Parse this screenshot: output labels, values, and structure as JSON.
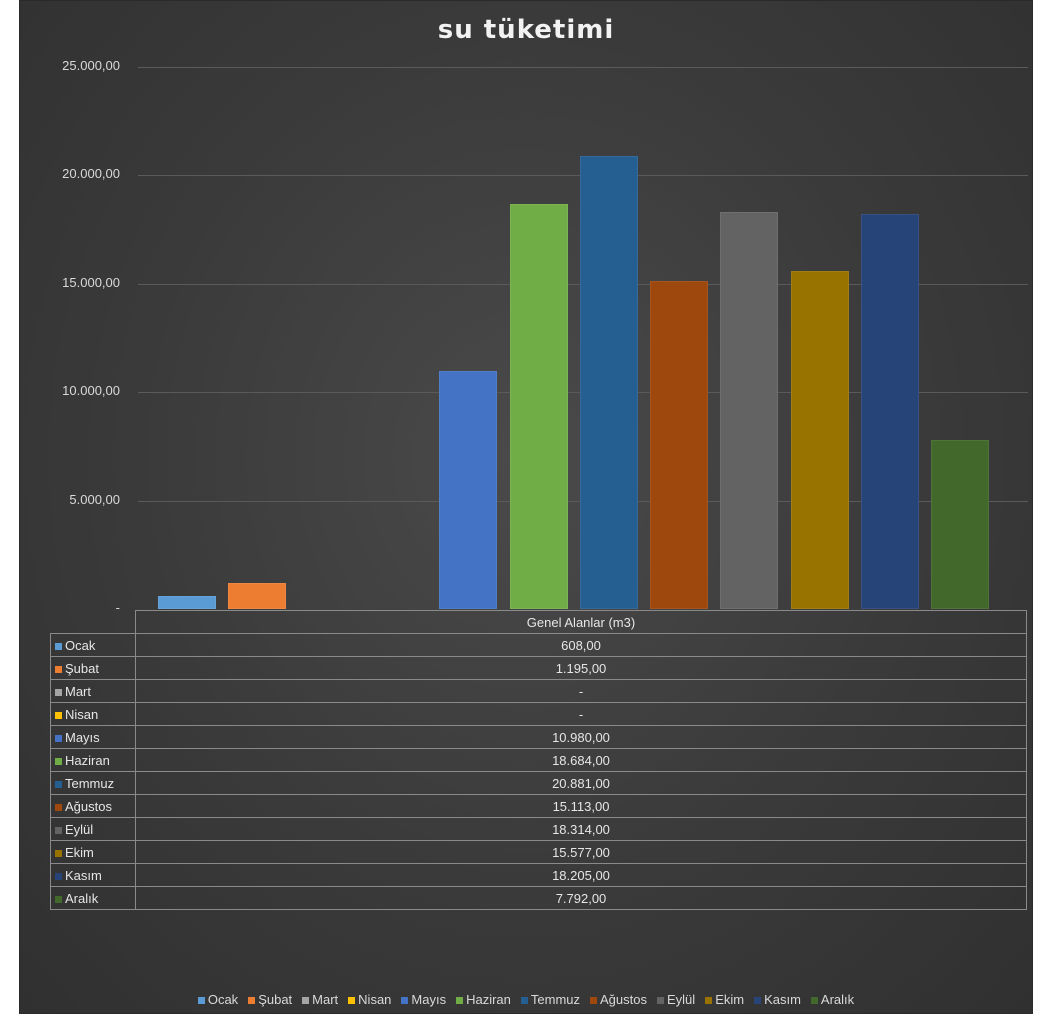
{
  "chart_data": {
    "type": "bar",
    "title": "su tüketimi",
    "series_label": "Genel Alanlar (m3)",
    "ylim": [
      0,
      25000
    ],
    "y_ticks": [
      {
        "value": 0,
        "label": "-"
      },
      {
        "value": 5000,
        "label": "5.000,00"
      },
      {
        "value": 10000,
        "label": "10.000,00"
      },
      {
        "value": 15000,
        "label": "15.000,00"
      },
      {
        "value": 20000,
        "label": "20.000,00"
      },
      {
        "value": 25000,
        "label": "25.000,00"
      }
    ],
    "grid": true,
    "legend_position": "bottom",
    "series": [
      {
        "name": "Ocak",
        "value": 608,
        "display": "608,00",
        "color": "#5b9bd5"
      },
      {
        "name": "Şubat",
        "value": 1195,
        "display": "1.195,00",
        "color": "#ed7d31"
      },
      {
        "name": "Mart",
        "value": 0,
        "display": "-",
        "color": "#a5a5a5"
      },
      {
        "name": "Nisan",
        "value": 0,
        "display": "-",
        "color": "#ffc000"
      },
      {
        "name": "Mayıs",
        "value": 10980,
        "display": "10.980,00",
        "color": "#4472c4"
      },
      {
        "name": "Haziran",
        "value": 18684,
        "display": "18.684,00",
        "color": "#70ad47"
      },
      {
        "name": "Temmuz",
        "value": 20881,
        "display": "20.881,00",
        "color": "#255e91"
      },
      {
        "name": "Ağustos",
        "value": 15113,
        "display": "15.113,00",
        "color": "#9e480e"
      },
      {
        "name": "Eylül",
        "value": 18314,
        "display": "18.314,00",
        "color": "#636363"
      },
      {
        "name": "Ekim",
        "value": 15577,
        "display": "15.577,00",
        "color": "#997300"
      },
      {
        "name": "Kasım",
        "value": 18205,
        "display": "18.205,00",
        "color": "#264478"
      },
      {
        "name": "Aralık",
        "value": 7792,
        "display": "7.792,00",
        "color": "#43682b"
      }
    ]
  }
}
